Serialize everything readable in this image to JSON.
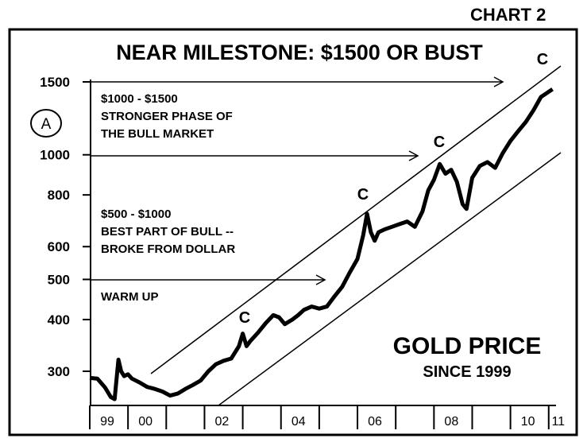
{
  "chart_data": {
    "type": "line",
    "label": "CHART 2",
    "title": "NEAR MILESTONE: $1500 OR BUST",
    "panel_title": "GOLD PRICE",
    "panel_subtitle": "SINCE 1999",
    "scale": "log",
    "ylim": [
      250,
      1600
    ],
    "xlim": [
      1999.0,
      2011.15
    ],
    "y_ticks": [
      {
        "value": 300,
        "label": "300"
      },
      {
        "value": 400,
        "label": "400"
      },
      {
        "value": 500,
        "label": "500"
      },
      {
        "value": 600,
        "label": "600"
      },
      {
        "value": 800,
        "label": "800"
      },
      {
        "value": 1000,
        "label": "1000"
      },
      {
        "value": 1500,
        "label": "1500"
      }
    ],
    "x_ticks": [
      {
        "value": 1999,
        "label": "99"
      },
      {
        "value": 2000,
        "label": "00"
      },
      {
        "value": 2002,
        "label": "02"
      },
      {
        "value": 2004,
        "label": "04"
      },
      {
        "value": 2006,
        "label": "06"
      },
      {
        "value": 2008,
        "label": "08"
      },
      {
        "value": 2010,
        "label": "10"
      },
      {
        "value": 2011,
        "label": "11"
      }
    ],
    "series": [
      {
        "x": [
          1999.0,
          1999.2,
          1999.4,
          1999.55,
          1999.65,
          1999.75,
          1999.82,
          1999.9,
          2000.0,
          2000.1,
          2000.3,
          2000.5,
          2000.7,
          2000.9,
          2001.1,
          2001.3,
          2001.5,
          2001.7,
          2001.9,
          2002.1,
          2002.3,
          2002.5,
          2002.7,
          2002.9,
          2003.0,
          2003.1,
          2003.2,
          2003.4,
          2003.6,
          2003.8,
          2003.95,
          2004.1,
          2004.3,
          2004.45,
          2004.6,
          2004.8,
          2005.0,
          2005.2,
          2005.4,
          2005.6,
          2005.8,
          2006.0,
          2006.15,
          2006.25,
          2006.35,
          2006.45,
          2006.55,
          2006.7,
          2006.9,
          2007.1,
          2007.3,
          2007.5,
          2007.7,
          2007.85,
          2008.0,
          2008.15,
          2008.3,
          2008.45,
          2008.6,
          2008.75,
          2008.85,
          2009.0,
          2009.2,
          2009.4,
          2009.6,
          2009.8,
          2010.0,
          2010.2,
          2010.4,
          2010.6,
          2010.8,
          2011.0,
          2011.1
        ],
        "y": [
          289,
          288,
          274,
          260,
          257,
          320,
          300,
          292,
          295,
          288,
          282,
          275,
          272,
          268,
          262,
          265,
          272,
          278,
          285,
          300,
          312,
          318,
          322,
          345,
          370,
          345,
          355,
          372,
          392,
          410,
          405,
          390,
          400,
          410,
          422,
          430,
          425,
          430,
          455,
          480,
          520,
          560,
          640,
          720,
          650,
          620,
          650,
          660,
          670,
          680,
          690,
          670,
          730,
          820,
          870,
          950,
          900,
          920,
          860,
          760,
          740,
          880,
          940,
          960,
          930,
          1010,
          1080,
          1140,
          1200,
          1280,
          1380,
          1420,
          1440
        ]
      }
    ],
    "annotations": [
      {
        "text": "$1000 - $1500",
        "group": "upper"
      },
      {
        "text": "STRONGER PHASE OF",
        "group": "upper"
      },
      {
        "text": "THE BULL MARKET",
        "group": "upper"
      },
      {
        "text": "$500 - $1000",
        "group": "middle"
      },
      {
        "text": "BEST PART OF BULL --",
        "group": "middle"
      },
      {
        "text": "BROKE FROM DOLLAR",
        "group": "middle"
      },
      {
        "text": "WARM UP",
        "group": "lower"
      }
    ],
    "peak_markers": [
      "C",
      "C",
      "C",
      "C"
    ],
    "circle_marker": "A"
  }
}
